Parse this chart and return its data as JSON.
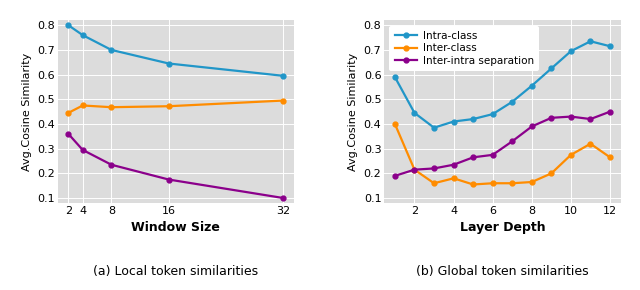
{
  "left": {
    "x": [
      2,
      4,
      8,
      16,
      32
    ],
    "intra_class": [
      0.8,
      0.76,
      0.7,
      0.645,
      0.595
    ],
    "inter_class": [
      0.445,
      0.475,
      0.468,
      0.472,
      0.495
    ],
    "inter_intra_sep": [
      0.36,
      0.295,
      0.235,
      0.175,
      0.1
    ],
    "xlabel": "Window Size",
    "ylabel": "Avg.Cosine Similarity",
    "ylim": [
      0.08,
      0.82
    ],
    "yticks": [
      0.1,
      0.2,
      0.3,
      0.4,
      0.5,
      0.6,
      0.7,
      0.8
    ],
    "xticks": [
      2,
      4,
      8,
      16,
      32
    ],
    "caption": "(a) Local token similarities"
  },
  "right": {
    "x": [
      1,
      2,
      3,
      4,
      5,
      6,
      7,
      8,
      9,
      10,
      11,
      12
    ],
    "intra_class": [
      0.59,
      0.445,
      0.385,
      0.41,
      0.42,
      0.44,
      0.49,
      0.555,
      0.625,
      0.695,
      0.735,
      0.715
    ],
    "inter_class": [
      0.4,
      0.215,
      0.16,
      0.18,
      0.155,
      0.16,
      0.16,
      0.165,
      0.2,
      0.275,
      0.32,
      0.265
    ],
    "inter_intra_sep": [
      0.19,
      0.215,
      0.22,
      0.235,
      0.265,
      0.275,
      0.33,
      0.39,
      0.425,
      0.43,
      0.42,
      0.45
    ],
    "xlabel": "Layer Depth",
    "ylabel": "Avg.Cosine Similarity",
    "ylim": [
      0.08,
      0.82
    ],
    "yticks": [
      0.1,
      0.2,
      0.3,
      0.4,
      0.5,
      0.6,
      0.7,
      0.8
    ],
    "xticks": [
      2,
      4,
      6,
      8,
      10,
      12
    ],
    "caption": "(b) Global token similarities",
    "legend_labels": [
      "Intra-class",
      "Inter-class",
      "Inter-intra separation"
    ]
  },
  "colors": {
    "intra_class": "#2196c8",
    "inter_class": "#ff8c00",
    "inter_intra_sep": "#8b008b"
  },
  "bg_color": "#dcdcdc",
  "linewidth": 1.6,
  "markersize": 3.5
}
